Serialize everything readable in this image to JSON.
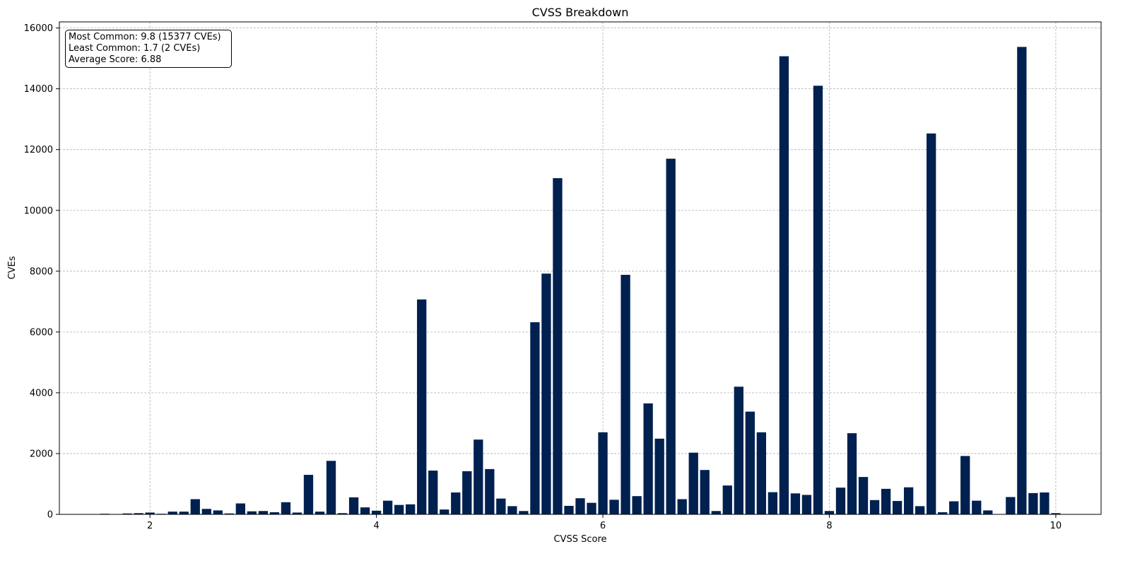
{
  "chart_data": {
    "type": "bar",
    "title": "CVSS Breakdown",
    "xlabel": "CVSS Score",
    "ylabel": "CVEs",
    "xlim": [
      1.2,
      10.4
    ],
    "ylim": [
      0,
      16200
    ],
    "xticks": [
      2,
      4,
      6,
      8,
      10
    ],
    "yticks": [
      0,
      2000,
      4000,
      6000,
      8000,
      10000,
      12000,
      14000,
      16000
    ],
    "grid": true,
    "bar_color": "#002050",
    "bin_width": 0.083,
    "x": [
      1.6,
      1.8,
      1.9,
      2.0,
      2.1,
      2.2,
      2.3,
      2.4,
      2.5,
      2.6,
      2.7,
      2.8,
      2.9,
      3.0,
      3.1,
      3.2,
      3.3,
      3.4,
      3.5,
      3.6,
      3.7,
      3.8,
      3.9,
      4.0,
      4.1,
      4.2,
      4.3,
      4.4,
      4.5,
      4.6,
      4.7,
      4.8,
      4.9,
      5.0,
      5.1,
      5.2,
      5.3,
      5.4,
      5.5,
      5.6,
      5.7,
      5.8,
      5.9,
      6.0,
      6.1,
      6.2,
      6.3,
      6.4,
      6.5,
      6.6,
      6.7,
      6.8,
      6.9,
      7.0,
      7.1,
      7.2,
      7.3,
      7.4,
      7.5,
      7.6,
      7.7,
      7.8,
      7.9,
      8.0,
      8.1,
      8.2,
      8.3,
      8.4,
      8.5,
      8.6,
      8.7,
      8.8,
      8.9,
      9.0,
      9.1,
      9.2,
      9.3,
      9.4,
      9.6,
      9.7,
      9.8,
      9.9,
      10.0
    ],
    "values": [
      20,
      30,
      40,
      60,
      20,
      90,
      90,
      500,
      180,
      130,
      30,
      360,
      100,
      110,
      70,
      400,
      60,
      1300,
      90,
      1760,
      40,
      560,
      230,
      120,
      450,
      310,
      330,
      7070,
      1440,
      160,
      720,
      1420,
      2460,
      1490,
      520,
      270,
      110,
      6320,
      7920,
      11060,
      280,
      530,
      380,
      2700,
      480,
      7880,
      600,
      3650,
      2490,
      11700,
      500,
      2030,
      1460,
      110,
      950,
      4200,
      3380,
      2700,
      730,
      15070,
      690,
      640,
      14100,
      110,
      880,
      2670,
      1230,
      470,
      840,
      440,
      890,
      270,
      12530,
      70,
      430,
      1920,
      450,
      130,
      570,
      15377,
      700,
      720,
      40
    ]
  },
  "stats_box": {
    "most_common": "Most Common: 9.8 (15377 CVEs)",
    "least_common": "Least Common: 1.7 (2 CVEs)",
    "average": "Average Score: 6.88"
  }
}
